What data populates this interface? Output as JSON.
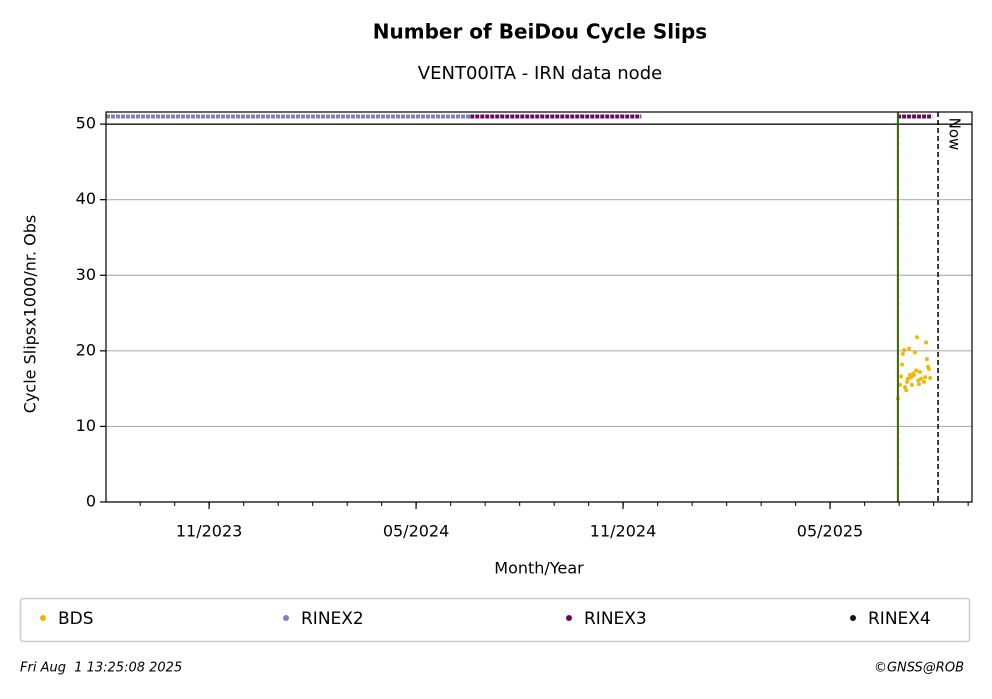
{
  "chart_data": {
    "type": "scatter",
    "title": "Number of BeiDou Cycle Slips",
    "subtitle": "VENT00ITA - IRN data node",
    "xlabel": "Month/Year",
    "ylabel": "Cycle Slipsx1000/nr. Obs",
    "xlim": [
      2023.584,
      2025.676
    ],
    "ylim": [
      0,
      51.6
    ],
    "xticks": [
      {
        "value": 2023.833,
        "label": "11/2023"
      },
      {
        "value": 2024.333,
        "label": "05/2024"
      },
      {
        "value": 2024.833,
        "label": "11/2024"
      },
      {
        "value": 2025.333,
        "label": "05/2025"
      }
    ],
    "yticks": [
      0,
      10,
      20,
      30,
      40,
      50
    ],
    "grid": true,
    "hlines": [
      50
    ],
    "vlines": [
      {
        "x": 2025.497,
        "color": "#008000",
        "color2": "#ff0000"
      },
      {
        "x": 2025.594,
        "color": "#000000",
        "label": "Now"
      }
    ],
    "legend": "bottom",
    "series": [
      {
        "name": "BDS",
        "color": "#f2b705",
        "style": "dots",
        "x": [
          2025.497,
          2025.502,
          2025.505,
          2025.507,
          2025.509,
          2025.512,
          2025.514,
          2025.517,
          2025.519,
          2025.521,
          2025.524,
          2025.526,
          2025.529,
          2025.531,
          2025.534,
          2025.536,
          2025.538,
          2025.541,
          2025.543,
          2025.546,
          2025.548,
          2025.55,
          2025.553,
          2025.56,
          2025.563,
          2025.565,
          2025.567,
          2025.57,
          2025.572,
          2025.575
        ],
        "values": [
          13.7,
          15.5,
          16.6,
          18.2,
          19.6,
          20.1,
          15.2,
          14.8,
          15.9,
          16.3,
          20.3,
          16.8,
          16.5,
          15.5,
          17.0,
          16.8,
          19.8,
          17.4,
          21.8,
          16.1,
          15.6,
          17.2,
          16.3,
          15.9,
          16.5,
          21.1,
          18.9,
          17.9,
          17.6,
          16.4
        ]
      },
      {
        "name": "RINEX2",
        "color": "#7f7fbf",
        "style": "band",
        "x": [
          2023.584,
          2024.464
        ],
        "values": [
          51,
          51
        ]
      },
      {
        "name": "RINEX3",
        "color": "#6b0a5c",
        "style": "band",
        "x": [
          2024.464,
          2024.877,
          2025.2,
          2025.495,
          2025.58
        ],
        "values": [
          51,
          51,
          null,
          51,
          51
        ]
      },
      {
        "name": "RINEX4",
        "color": "#1c0a1c",
        "style": "dots",
        "x": [],
        "values": []
      }
    ]
  },
  "footer": {
    "left": "Fri Aug  1 13:25:08 2025",
    "right": "©GNSS@ROB"
  }
}
